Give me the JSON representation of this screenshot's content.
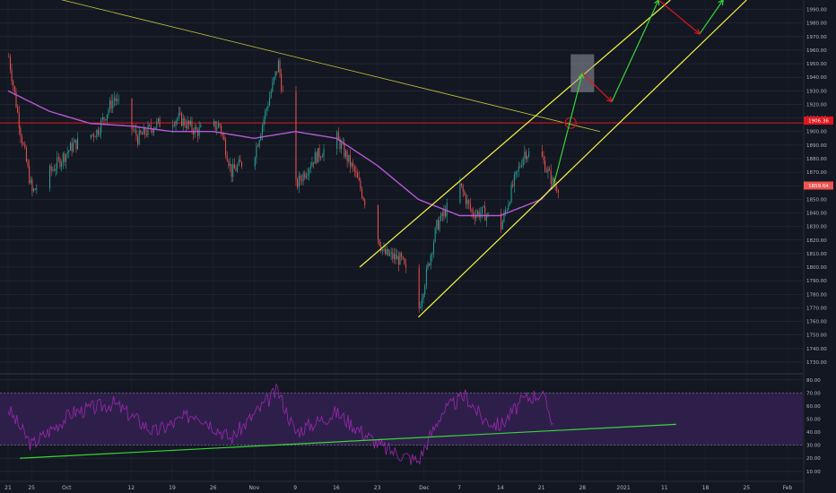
{
  "colors": {
    "background": "#131722",
    "grid": "#2a2e39",
    "up": "#26a69a",
    "down": "#ef5350",
    "ma": "#b659d4",
    "channel": "#f5f542",
    "trendline": "#c9c93a",
    "support": "#e0161d",
    "projection_up": "#37d637",
    "projection_down": "#e0161d",
    "rsi_line": "#9c27b0",
    "rsi_band": "#2e1f4a",
    "rsi_trend": "#37d637",
    "box": "#9598a1"
  },
  "price_axis": {
    "ticks": [
      "1990.00",
      "1980.00",
      "1970.00",
      "1960.00",
      "1950.00",
      "1940.00",
      "1930.00",
      "1920.00",
      "1910.00",
      "1900.00",
      "1890.00",
      "1880.00",
      "1870.00",
      "1860.00",
      "1850.00",
      "1840.00",
      "1830.00",
      "1820.00",
      "1810.00",
      "1800.00",
      "1790.00",
      "1780.00",
      "1770.00",
      "1760.00",
      "1750.00",
      "1740.00",
      "1730.00"
    ],
    "range": [
      1722,
      1997
    ]
  },
  "rsi_axis": {
    "ticks": [
      "80.00",
      "70.00",
      "60.00",
      "50.00",
      "40.00",
      "30.00",
      "20.00",
      "10.00"
    ],
    "range": [
      3,
      84
    ]
  },
  "time_axis": {
    "labels": [
      "21",
      "25",
      "Oct",
      "12",
      "19",
      "26",
      "Nov",
      "9",
      "16",
      "23",
      "Dec",
      "7",
      "14",
      "21",
      "28",
      "2021",
      "11",
      "18",
      "25",
      "Feb"
    ]
  },
  "price_labels": {
    "support": "1906.36",
    "last": "1859.64"
  },
  "chart_data": {
    "type": "candlestick",
    "instrument_hint": "",
    "date_range": [
      "2020-09-21",
      "2020-12-23"
    ],
    "y_range": [
      1722,
      1997
    ],
    "series": [
      {
        "kind": "price_keypoints",
        "points": [
          [
            "2020-09-21",
            1955
          ],
          [
            "2020-09-23",
            1900
          ],
          [
            "2020-09-25",
            1855
          ],
          [
            "2020-09-28",
            1870
          ],
          [
            "2020-10-02",
            1890
          ],
          [
            "2020-10-06",
            1900
          ],
          [
            "2020-10-09",
            1925
          ],
          [
            "2020-10-13",
            1895
          ],
          [
            "2020-10-16",
            1905
          ],
          [
            "2020-10-20",
            1910
          ],
          [
            "2020-10-23",
            1900
          ],
          [
            "2020-10-27",
            1905
          ],
          [
            "2020-10-29",
            1870
          ],
          [
            "2020-11-02",
            1885
          ],
          [
            "2020-11-06",
            1950
          ],
          [
            "2020-11-09",
            1860
          ],
          [
            "2020-11-12",
            1880
          ],
          [
            "2020-11-16",
            1895
          ],
          [
            "2020-11-19",
            1870
          ],
          [
            "2020-11-24",
            1810
          ],
          [
            "2020-11-27",
            1805
          ],
          [
            "2020-11-30",
            1770
          ],
          [
            "2020-12-03",
            1830
          ],
          [
            "2020-12-07",
            1860
          ],
          [
            "2020-12-09",
            1840
          ],
          [
            "2020-12-11",
            1840
          ],
          [
            "2020-12-14",
            1830
          ],
          [
            "2020-12-16",
            1860
          ],
          [
            "2020-12-18",
            1885
          ],
          [
            "2020-12-21",
            1880
          ],
          [
            "2020-12-23",
            1860
          ]
        ]
      },
      {
        "kind": "moving_average",
        "points": [
          [
            "2020-09-21",
            1930
          ],
          [
            "2020-09-28",
            1915
          ],
          [
            "2020-10-05",
            1906
          ],
          [
            "2020-10-12",
            1904
          ],
          [
            "2020-10-19",
            1900
          ],
          [
            "2020-10-26",
            1900
          ],
          [
            "2020-11-02",
            1895
          ],
          [
            "2020-11-09",
            1900
          ],
          [
            "2020-11-16",
            1895
          ],
          [
            "2020-11-23",
            1875
          ],
          [
            "2020-11-30",
            1850
          ],
          [
            "2020-12-07",
            1838
          ],
          [
            "2020-12-14",
            1838
          ],
          [
            "2020-12-21",
            1850
          ],
          [
            "2020-12-23",
            1860
          ]
        ]
      }
    ],
    "rsi": {
      "levels": [
        70,
        30
      ],
      "trendline": [
        [
          "2020-09-23",
          20
        ],
        [
          "2021-01-13",
          46
        ]
      ],
      "points": [
        [
          "2020-09-21",
          58
        ],
        [
          "2020-09-25",
          30
        ],
        [
          "2020-10-02",
          55
        ],
        [
          "2020-10-09",
          62
        ],
        [
          "2020-10-16",
          40
        ],
        [
          "2020-10-23",
          55
        ],
        [
          "2020-10-29",
          35
        ],
        [
          "2020-11-06",
          72
        ],
        [
          "2020-11-09",
          40
        ],
        [
          "2020-11-16",
          55
        ],
        [
          "2020-11-24",
          28
        ],
        [
          "2020-11-30",
          18
        ],
        [
          "2020-12-04",
          55
        ],
        [
          "2020-12-08",
          68
        ],
        [
          "2020-12-11",
          50
        ],
        [
          "2020-12-14",
          45
        ],
        [
          "2020-12-18",
          65
        ],
        [
          "2020-12-21",
          70
        ],
        [
          "2020-12-23",
          48
        ]
      ]
    },
    "drawings": {
      "support_level": 1906.36,
      "channel_upper": [
        [
          "2020-11-20",
          1800
        ],
        [
          "2021-01-12",
          1997
        ]
      ],
      "channel_lower": [
        [
          "2020-11-30",
          1763
        ],
        [
          "2021-01-25",
          1997
        ]
      ],
      "descending_trendline": [
        [
          "2020-09-18",
          2010
        ],
        [
          "2020-12-31",
          1900
        ]
      ],
      "projections_up": [
        [
          [
            "2020-12-23",
            1859
          ],
          [
            "2020-12-28",
            1943
          ]
        ],
        [
          [
            "2021-01-02",
            1922
          ],
          [
            "2021-01-10",
            1997
          ]
        ],
        [
          [
            "2021-01-17",
            1972
          ],
          [
            "2021-01-21",
            1997
          ]
        ]
      ],
      "projections_down": [
        [
          [
            "2020-12-28",
            1943
          ],
          [
            "2021-01-02",
            1922
          ]
        ],
        [
          [
            "2021-01-10",
            1997
          ],
          [
            "2021-01-17",
            1972
          ]
        ]
      ],
      "box": [
        [
          "2020-12-26",
          1929
        ],
        [
          "2020-12-30",
          1957
        ]
      ]
    }
  }
}
